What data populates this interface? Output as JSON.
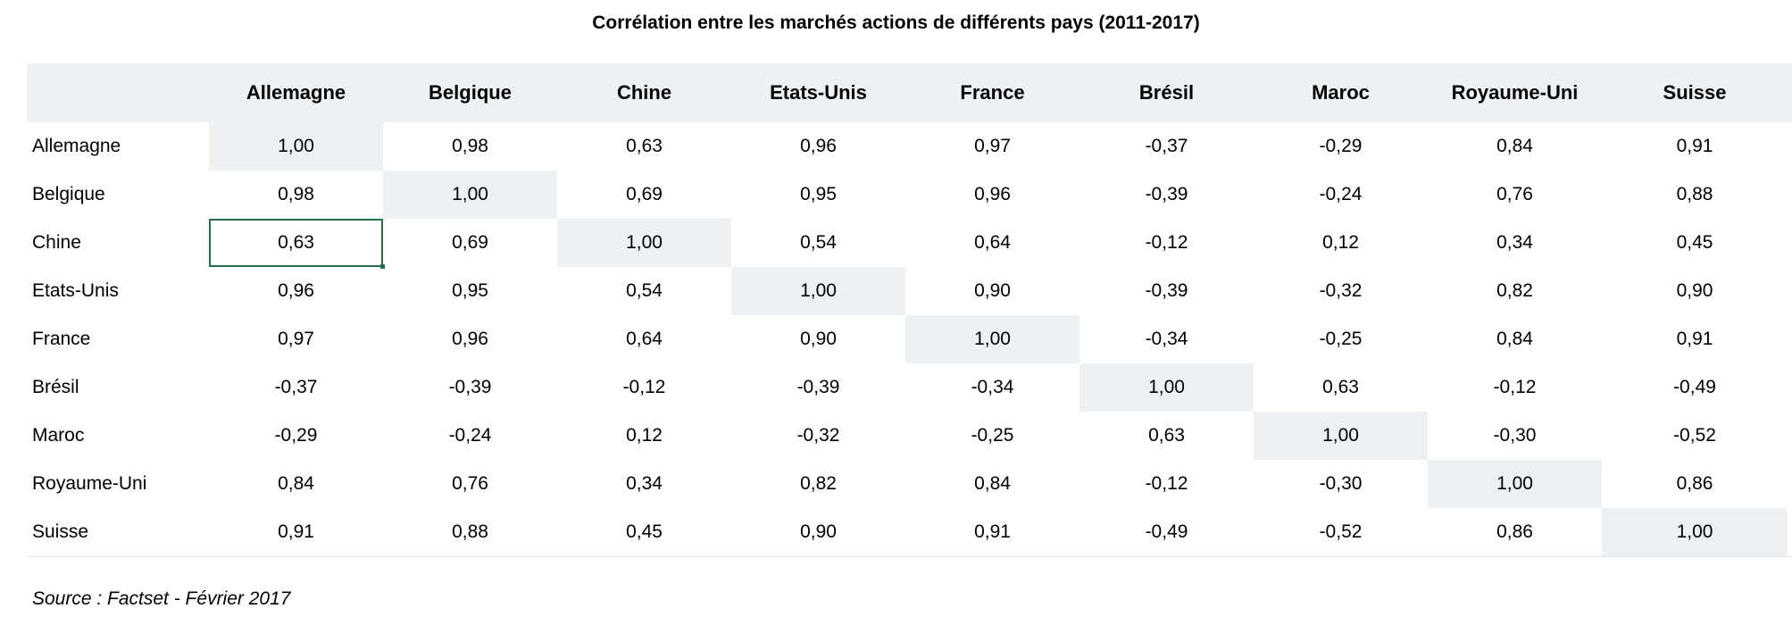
{
  "title": "Corrélation entre les marchés actions de différents pays (2011-2017)",
  "columns": [
    "Allemagne",
    "Belgique",
    "Chine",
    "Etats-Unis",
    "France",
    "Brésil",
    "Maroc",
    "Royaume-Uni",
    "Suisse"
  ],
  "rows": [
    {
      "label": "Allemagne",
      "values": [
        "1,00",
        "0,98",
        "0,63",
        "0,96",
        "0,97",
        "-0,37",
        "-0,29",
        "0,84",
        "0,91"
      ]
    },
    {
      "label": "Belgique",
      "values": [
        "0,98",
        "1,00",
        "0,69",
        "0,95",
        "0,96",
        "-0,39",
        "-0,24",
        "0,76",
        "0,88"
      ]
    },
    {
      "label": "Chine",
      "values": [
        "0,63",
        "0,69",
        "1,00",
        "0,54",
        "0,64",
        "-0,12",
        "0,12",
        "0,34",
        "0,45"
      ]
    },
    {
      "label": "Etats-Unis",
      "values": [
        "0,96",
        "0,95",
        "0,54",
        "1,00",
        "0,90",
        "-0,39",
        "-0,32",
        "0,82",
        "0,90"
      ]
    },
    {
      "label": "France",
      "values": [
        "0,97",
        "0,96",
        "0,64",
        "0,90",
        "1,00",
        "-0,34",
        "-0,25",
        "0,84",
        "0,91"
      ]
    },
    {
      "label": "Brésil",
      "values": [
        "-0,37",
        "-0,39",
        "-0,12",
        "-0,39",
        "-0,34",
        "1,00",
        "0,63",
        "-0,12",
        "-0,49"
      ]
    },
    {
      "label": "Maroc",
      "values": [
        "-0,29",
        "-0,24",
        "0,12",
        "-0,32",
        "-0,25",
        "0,63",
        "1,00",
        "-0,30",
        "-0,52"
      ]
    },
    {
      "label": "Royaume-Uni",
      "values": [
        "0,84",
        "0,76",
        "0,34",
        "0,82",
        "0,84",
        "-0,12",
        "-0,30",
        "1,00",
        "0,86"
      ]
    },
    {
      "label": "Suisse",
      "values": [
        "0,91",
        "0,88",
        "0,45",
        "0,90",
        "0,91",
        "-0,49",
        "-0,52",
        "0,86",
        "1,00"
      ]
    }
  ],
  "selected_cell": {
    "row": 2,
    "col": 0
  },
  "source": "Source : Factset - Février 2017",
  "colors": {
    "header_bg": "#edf1f4",
    "diagonal_bg": "#edf1f4",
    "selection_border": "#217346"
  }
}
